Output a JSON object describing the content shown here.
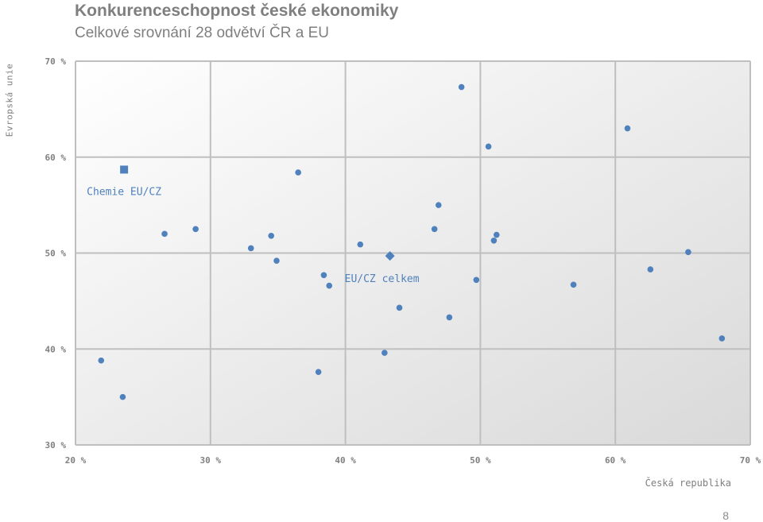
{
  "page": {
    "title": "Konkurenceschopnost české ekonomiky",
    "subtitle": "Celkové srovnání 28 odvětví ČR a EU",
    "page_number": "8"
  },
  "colors": {
    "point": "#4f81bd",
    "grid": "#bfbfbf",
    "text": "#7f7f7f",
    "plot_bg_light": "#ffffff",
    "plot_bg_dark": "#d9d9d9"
  },
  "chart_data": {
    "type": "scatter",
    "xlabel": "Česká republika",
    "ylabel": "Evropská unie",
    "xlim": [
      20,
      70
    ],
    "ylim": [
      30,
      70
    ],
    "grid": true,
    "x_ticks": [
      20,
      30,
      40,
      50,
      60,
      70
    ],
    "y_ticks": [
      30,
      40,
      50,
      60,
      70
    ],
    "x_tick_labels": [
      "20 %",
      "30 %",
      "40 %",
      "50 %",
      "60 %",
      "70 %"
    ],
    "y_tick_labels": [
      "30 %",
      "40 %",
      "50 %",
      "60 %",
      "70 %"
    ],
    "points": [
      {
        "x": 21.9,
        "y": 38.8
      },
      {
        "x": 23.5,
        "y": 35.0
      },
      {
        "x": 26.6,
        "y": 52.0
      },
      {
        "x": 28.9,
        "y": 52.5
      },
      {
        "x": 33.0,
        "y": 50.5
      },
      {
        "x": 34.5,
        "y": 51.8
      },
      {
        "x": 34.9,
        "y": 49.2
      },
      {
        "x": 36.5,
        "y": 58.4
      },
      {
        "x": 38.0,
        "y": 37.6
      },
      {
        "x": 38.4,
        "y": 47.7
      },
      {
        "x": 38.8,
        "y": 46.6
      },
      {
        "x": 41.1,
        "y": 50.9
      },
      {
        "x": 42.9,
        "y": 39.6
      },
      {
        "x": 44.0,
        "y": 44.3
      },
      {
        "x": 46.6,
        "y": 52.5
      },
      {
        "x": 46.9,
        "y": 55.0
      },
      {
        "x": 47.7,
        "y": 43.3
      },
      {
        "x": 48.6,
        "y": 67.3
      },
      {
        "x": 49.7,
        "y": 47.2
      },
      {
        "x": 50.6,
        "y": 61.1
      },
      {
        "x": 51.0,
        "y": 51.3
      },
      {
        "x": 51.2,
        "y": 51.9
      },
      {
        "x": 56.9,
        "y": 46.7
      },
      {
        "x": 60.9,
        "y": 63.0
      },
      {
        "x": 62.6,
        "y": 48.3
      },
      {
        "x": 65.4,
        "y": 50.1
      },
      {
        "x": 67.9,
        "y": 41.1
      }
    ],
    "highlights": [
      {
        "label": "Chemie EU/CZ",
        "marker": "square",
        "x": 23.6,
        "y": 58.7
      },
      {
        "label": "EU/CZ celkem",
        "marker": "diamond",
        "x": 43.3,
        "y": 49.7
      }
    ]
  }
}
